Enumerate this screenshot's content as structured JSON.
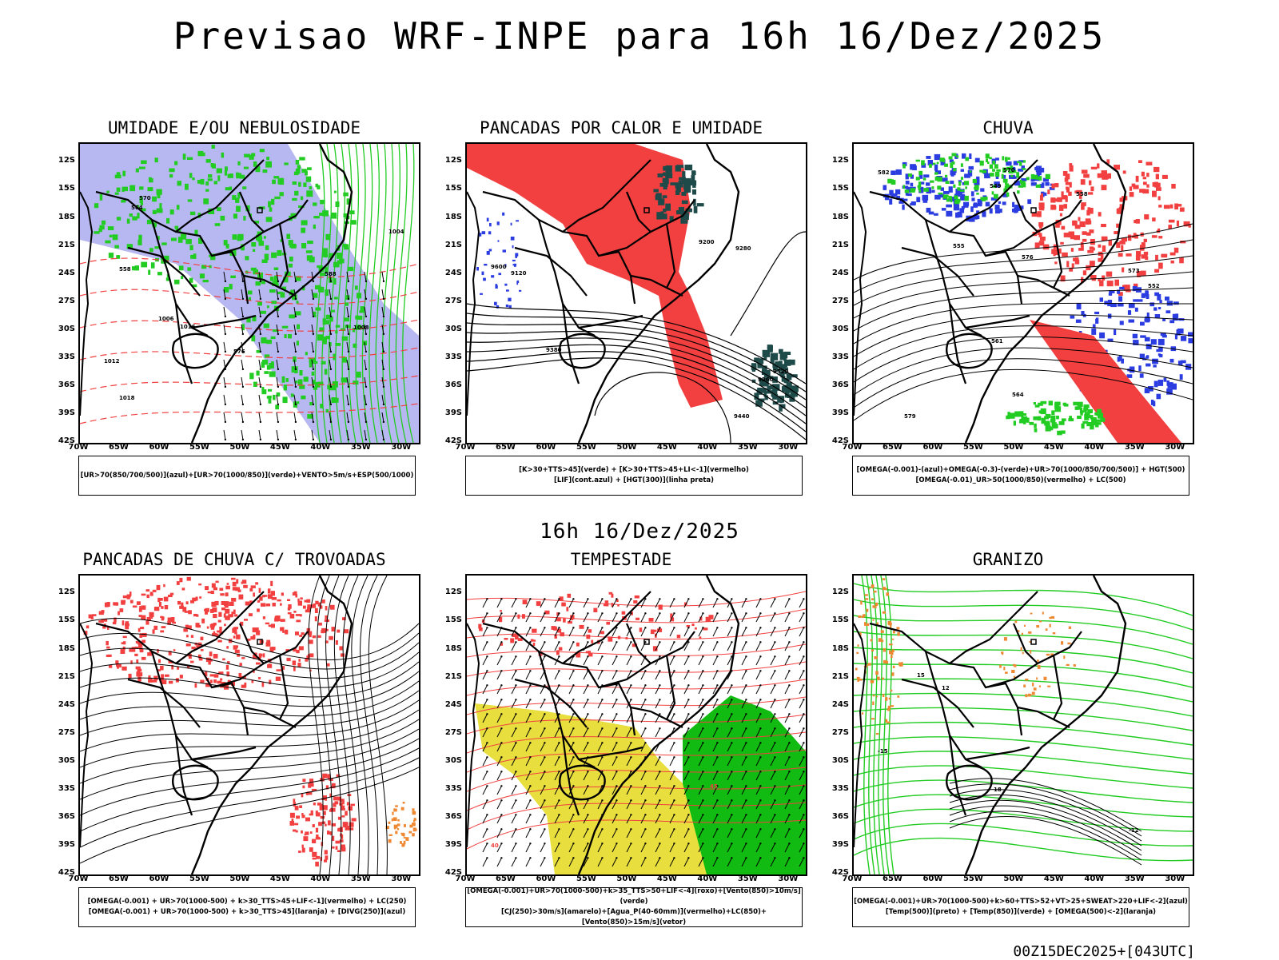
{
  "title": "Previsao WRF-INPE  para 16h 16/Dez/2025",
  "mid_title": "16h 16/Dez/2025",
  "footer": "00Z15DEC2025+[043UTC]",
  "axes": {
    "lat_labels": [
      "12S",
      "15S",
      "18S",
      "21S",
      "24S",
      "27S",
      "30S",
      "33S",
      "36S",
      "39S",
      "42S"
    ],
    "lon_labels": [
      "70W",
      "65W",
      "60W",
      "55W",
      "50W",
      "45W",
      "40W",
      "35W",
      "30W"
    ]
  },
  "colors": {
    "red": "#f24040",
    "green": "#22cc22",
    "blue": "#2b3de0",
    "lavender": "#aaaaee",
    "yellow": "#e5dc2a",
    "orange": "#ee8833",
    "darkteal": "#1e4a4a",
    "bright_green": "#11bb11"
  },
  "panels": [
    {
      "title": "UMIDADE E/OU NEBULOSIDADE",
      "legend": [
        "[UR>70(850/700/500)](azul)+[UR>70(1000/850)](verde)+VENTO>5m/s+ESP(500/1000)"
      ],
      "contour_labels": [
        "1012",
        "1008",
        "1006",
        "1004",
        "1016",
        "1018",
        "576",
        "570",
        "564",
        "558",
        "588"
      ]
    },
    {
      "title": "PANCADAS POR CALOR E UMIDADE",
      "legend": [
        "[K>30+TTS>45](verde) + [K>30+TTS>45+LI<-1](vermelho)",
        "[LIF](cont.azul) + [HGT(300)](linha preta)"
      ],
      "contour_labels": [
        "9600",
        "9520",
        "9440",
        "9360",
        "9280",
        "9200",
        "9120",
        "9380"
      ]
    },
    {
      "title": "CHUVA",
      "legend": [
        "[OMEGA(-0.001)-(azul)+OMEGA(-0.3)-(verde)+UR>70(1000/850/700/500)] + HGT(500)",
        "[OMEGA(-0.01)_UR>50(1000/850)(vermelho) + LC(500)"
      ],
      "contour_labels": [
        "582",
        "579",
        "576",
        "573",
        "570",
        "561",
        "558",
        "555",
        "552",
        "549",
        "564"
      ]
    },
    {
      "title": "PANCADAS DE CHUVA C/ TROVOADAS",
      "legend": [
        "[OMEGA(-0.001) + UR>70(1000-500) + k>30_TTS>45+LIF<-1](vermelho) + LC(250)",
        "[OMEGA(-0.001) + UR>70(1000-500) + k>30_TTS>45](laranja) + [DIVG(250)](azul)"
      ],
      "contour_labels": []
    },
    {
      "title": "TEMPESTADE",
      "legend": [
        "[OMEGA(-0.001)+UR>70(1000-500)+k>35_TTS>50+LIF<-4](roxo)+[Vento(850)>10m/s](verde)",
        "[CJ(250)>30m/s](amarelo)+[Agua_P(40-60mm)](vermelho)+LC(850)+[Vento(850)>15m/s](vetor)"
      ],
      "contour_labels": [
        "40",
        "45"
      ]
    },
    {
      "title": "GRANIZO",
      "legend": [
        "[OMEGA(-0.001)+UR>70(1000-500)+k>60+TTS>52+VT>25+SWEAT>220+LIF<-2](azul)",
        "[Temp(500)](preto) + [Temp(850)](verde) + [OMEGA(500)<-2](laranja)"
      ],
      "contour_labels": [
        "-15",
        "-12",
        "15",
        "12",
        "18"
      ]
    }
  ]
}
